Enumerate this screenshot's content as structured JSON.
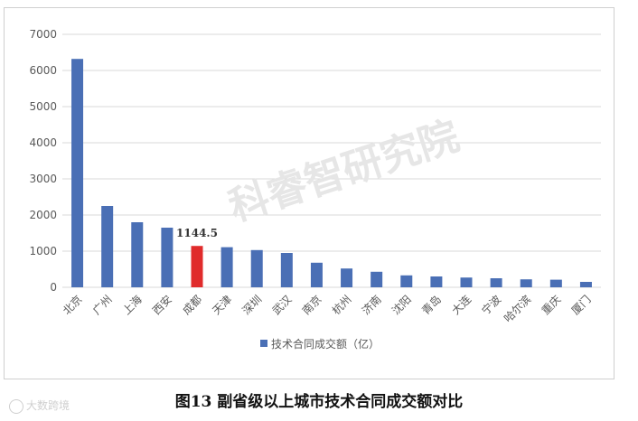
{
  "chart_data": {
    "type": "bar",
    "categories": [
      "北京",
      "广州",
      "上海",
      "西安",
      "成都",
      "天津",
      "深圳",
      "武汉",
      "南京",
      "杭州",
      "济南",
      "沈阳",
      "青岛",
      "大连",
      "宁波",
      "哈尔滨",
      "重庆",
      "厦门"
    ],
    "series": [
      {
        "name": "技术合同成交额（亿）",
        "values": [
          6320,
          2250,
          1800,
          1650,
          1144.5,
          1110,
          1030,
          950,
          680,
          520,
          430,
          330,
          300,
          270,
          250,
          220,
          210,
          150
        ]
      }
    ],
    "highlight_index": 4,
    "highlight_label": "1144.5",
    "ylim": [
      0,
      7000
    ],
    "yticks": [
      0,
      1000,
      2000,
      3000,
      4000,
      5000,
      6000,
      7000
    ],
    "grid": true,
    "legend_position": "bottom",
    "colors": {
      "bar": "#4a6fb5",
      "highlight": "#e02b2b",
      "grid": "#d9d9d9",
      "axis_text": "#595959"
    }
  },
  "caption": "图13  副省级以上城市技术合同成交额对比",
  "watermark": {
    "center": "科睿智研究院",
    "bottom": "大数跨境"
  }
}
